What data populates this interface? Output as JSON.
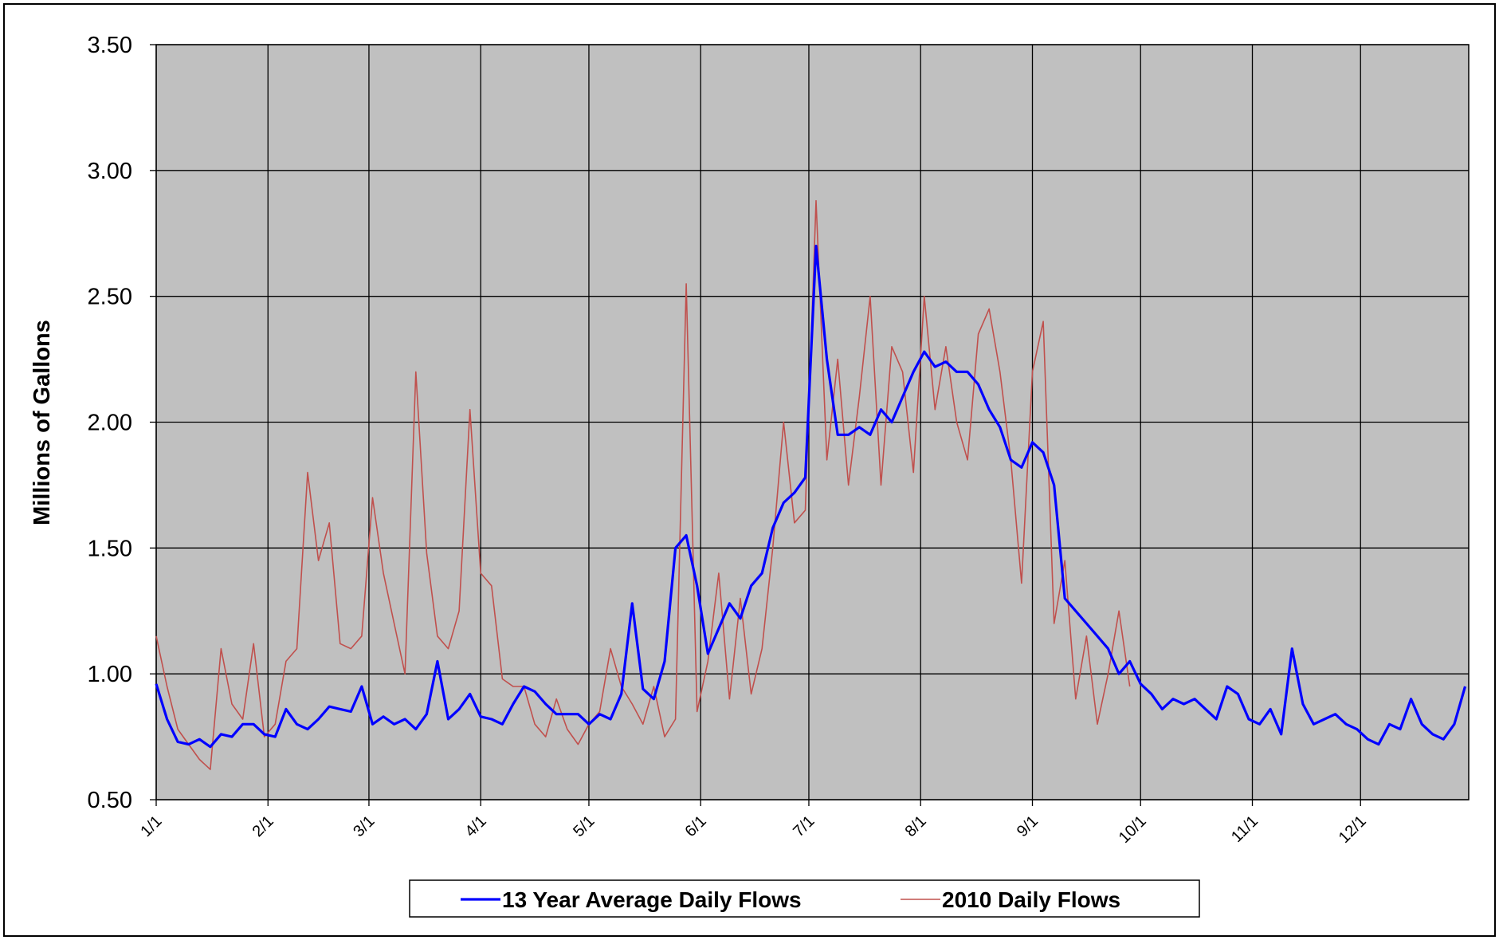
{
  "chart_data": {
    "type": "line",
    "y_label": "Millions of Gallons",
    "x": [
      0,
      3,
      6,
      9,
      12,
      15,
      18,
      21,
      24,
      27,
      30,
      33,
      36,
      39,
      42,
      45,
      48,
      51,
      54,
      57,
      60,
      63,
      66,
      69,
      72,
      75,
      78,
      81,
      84,
      87,
      90,
      93,
      96,
      99,
      102,
      105,
      108,
      111,
      114,
      117,
      120,
      123,
      126,
      129,
      132,
      135,
      138,
      141,
      144,
      147,
      150,
      153,
      156,
      159,
      162,
      165,
      168,
      171,
      174,
      177,
      180,
      183,
      186,
      189,
      192,
      195,
      198,
      201,
      204,
      207,
      210,
      213,
      216,
      219,
      222,
      225,
      228,
      231,
      234,
      237,
      240,
      243,
      246,
      249,
      252,
      255,
      258,
      261,
      264,
      267,
      270,
      273,
      276,
      279,
      282,
      285,
      288,
      291,
      294,
      297,
      300,
      303,
      306,
      309,
      312,
      315,
      318,
      321,
      324,
      327,
      330,
      333,
      336,
      339,
      342,
      345,
      348,
      351,
      354,
      357,
      360,
      363
    ],
    "xlim": [
      0,
      364
    ],
    "xticks": [
      {
        "value": 0,
        "label": "1/1"
      },
      {
        "value": 31,
        "label": "2/1"
      },
      {
        "value": 59,
        "label": "3/1"
      },
      {
        "value": 90,
        "label": "4/1"
      },
      {
        "value": 120,
        "label": "5/1"
      },
      {
        "value": 151,
        "label": "6/1"
      },
      {
        "value": 181,
        "label": "7/1"
      },
      {
        "value": 212,
        "label": "8/1"
      },
      {
        "value": 243,
        "label": "9/1"
      },
      {
        "value": 273,
        "label": "10/1"
      },
      {
        "value": 304,
        "label": "11/1"
      },
      {
        "value": 334,
        "label": "12/1"
      }
    ],
    "ylim": [
      0.5,
      3.5
    ],
    "yticks": [
      {
        "value": 0.5,
        "label": "0.50"
      },
      {
        "value": 1,
        "label": "1.00"
      },
      {
        "value": 1.5,
        "label": "1.50"
      },
      {
        "value": 2,
        "label": "2.00"
      },
      {
        "value": 2.5,
        "label": "2.50"
      },
      {
        "value": 3,
        "label": "3.00"
      },
      {
        "value": 3.5,
        "label": "3.50"
      }
    ],
    "grid": true,
    "legend": "bottom",
    "series": [
      {
        "name": "13 Year Average Daily Flows",
        "color": "#0000ff",
        "values": [
          0.96,
          0.82,
          0.73,
          0.72,
          0.74,
          0.71,
          0.76,
          0.75,
          0.8,
          0.8,
          0.76,
          0.75,
          0.86,
          0.8,
          0.78,
          0.82,
          0.87,
          0.86,
          0.85,
          0.95,
          0.8,
          0.83,
          0.8,
          0.82,
          0.78,
          0.84,
          1.05,
          0.82,
          0.86,
          0.92,
          0.83,
          0.82,
          0.8,
          0.88,
          0.95,
          0.93,
          0.88,
          0.84,
          0.84,
          0.84,
          0.8,
          0.84,
          0.82,
          0.92,
          1.28,
          0.94,
          0.9,
          1.05,
          1.5,
          1.55,
          1.35,
          1.08,
          1.18,
          1.28,
          1.22,
          1.35,
          1.4,
          1.58,
          1.68,
          1.72,
          1.78,
          2.7,
          2.25,
          1.95,
          1.95,
          1.98,
          1.95,
          2.05,
          2.0,
          2.1,
          2.2,
          2.28,
          2.22,
          2.24,
          2.2,
          2.2,
          2.15,
          2.05,
          1.98,
          1.85,
          1.82,
          1.92,
          1.88,
          1.75,
          1.3,
          1.25,
          1.2,
          1.15,
          1.1,
          1.0,
          1.05,
          0.96,
          0.92,
          0.86,
          0.9,
          0.88,
          0.9,
          0.86,
          0.82,
          0.95,
          0.92,
          0.82,
          0.8,
          0.86,
          0.76,
          1.1,
          0.88,
          0.8,
          0.82,
          0.84,
          0.8,
          0.78,
          0.74,
          0.72,
          0.8,
          0.78,
          0.9,
          0.8,
          0.76,
          0.74,
          0.8,
          0.95
        ]
      },
      {
        "name": "2010 Daily Flows",
        "color": "#c0504d",
        "values": [
          1.15,
          0.95,
          0.78,
          0.72,
          0.66,
          0.62,
          1.1,
          0.88,
          0.82,
          1.12,
          0.75,
          0.8,
          1.05,
          1.1,
          1.8,
          1.45,
          1.6,
          1.12,
          1.1,
          1.15,
          1.7,
          1.4,
          1.2,
          1.0,
          2.2,
          1.48,
          1.15,
          1.1,
          1.25,
          2.05,
          1.4,
          1.35,
          0.98,
          0.95,
          0.95,
          0.8,
          0.75,
          0.9,
          0.78,
          0.72,
          0.8,
          0.85,
          1.1,
          0.95,
          0.88,
          0.8,
          0.95,
          0.75,
          0.82,
          2.55,
          0.85,
          1.05,
          1.4,
          0.9,
          1.3,
          0.92,
          1.1,
          1.5,
          2.0,
          1.6,
          1.65,
          2.88,
          1.85,
          2.25,
          1.75,
          2.1,
          2.5,
          1.75,
          2.3,
          2.2,
          1.8,
          2.5,
          2.05,
          2.3,
          2.0,
          1.85,
          2.35,
          2.45,
          2.2,
          1.85,
          1.36,
          2.2,
          2.4,
          1.2,
          1.45,
          0.9,
          1.15,
          0.8,
          1.0,
          1.25,
          0.95,
          null,
          null,
          null,
          null,
          null,
          null,
          null,
          null,
          null,
          null,
          null,
          null,
          null,
          null,
          null,
          null,
          null,
          null,
          null,
          null,
          null,
          null,
          null,
          null,
          null,
          null,
          null,
          null,
          null,
          null,
          null
        ]
      }
    ]
  }
}
